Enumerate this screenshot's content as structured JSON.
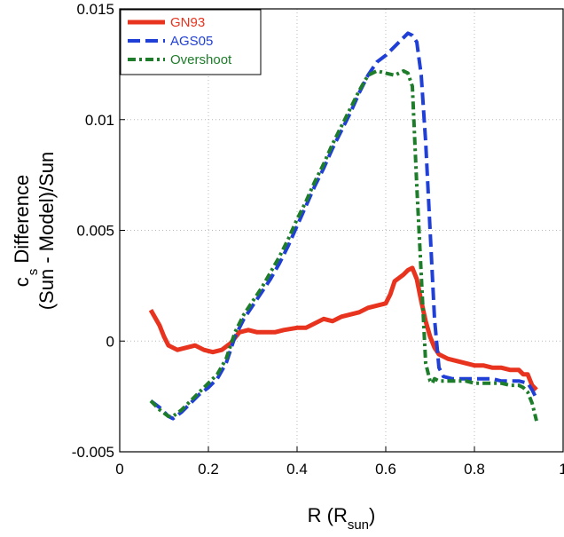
{
  "chart_data": {
    "type": "line",
    "title": "",
    "xlabel": {
      "main": "R (R",
      "sub": "sun",
      "close": ")"
    },
    "ylabel": {
      "c": "c",
      "s": "s",
      "line1_rest": " Difference",
      "line2": "(Sun - Model)/Sun"
    },
    "xlim": [
      0,
      1
    ],
    "ylim": [
      -0.005,
      0.015
    ],
    "x_ticks": [
      0,
      0.2,
      0.4,
      0.6,
      0.8,
      1
    ],
    "x_tick_labels": [
      "0",
      "0.2",
      "0.4",
      "0.6",
      "0.8",
      "1"
    ],
    "y_ticks": [
      -0.005,
      0,
      0.005,
      0.01,
      0.015
    ],
    "y_tick_labels": [
      "-0.005",
      "0",
      "0.005",
      "0.01",
      "0.015"
    ],
    "grid": true,
    "legend_position": "top-left",
    "series": [
      {
        "name": "GN93",
        "color": "#e8331e",
        "style": "solid",
        "x": [
          0.07,
          0.09,
          0.1,
          0.11,
          0.13,
          0.15,
          0.17,
          0.19,
          0.21,
          0.23,
          0.25,
          0.27,
          0.29,
          0.31,
          0.33,
          0.35,
          0.37,
          0.4,
          0.42,
          0.44,
          0.45,
          0.46,
          0.48,
          0.5,
          0.52,
          0.54,
          0.56,
          0.58,
          0.6,
          0.61,
          0.62,
          0.64,
          0.65,
          0.66,
          0.67,
          0.68,
          0.69,
          0.7,
          0.71,
          0.72,
          0.74,
          0.76,
          0.78,
          0.8,
          0.82,
          0.84,
          0.86,
          0.88,
          0.9,
          0.91,
          0.92,
          0.93,
          0.94
        ],
        "values": [
          0.0014,
          0.0007,
          0.0002,
          -0.0002,
          -0.0004,
          -0.0003,
          -0.0002,
          -0.0004,
          -0.0005,
          -0.0004,
          -0.0001,
          0.0004,
          0.0005,
          0.0004,
          0.0004,
          0.0004,
          0.0005,
          0.0006,
          0.0006,
          0.0008,
          0.0009,
          0.001,
          0.0009,
          0.0011,
          0.0012,
          0.0013,
          0.0015,
          0.0016,
          0.0017,
          0.0021,
          0.0027,
          0.003,
          0.0032,
          0.0033,
          0.0028,
          0.0018,
          0.0009,
          0.0002,
          -0.0003,
          -0.0006,
          -0.0008,
          -0.0009,
          -0.001,
          -0.0011,
          -0.0011,
          -0.0012,
          -0.0012,
          -0.0013,
          -0.0013,
          -0.0015,
          -0.0015,
          -0.002,
          -0.0022
        ]
      },
      {
        "name": "AGS05",
        "color": "#1f3fd6",
        "style": "dashed",
        "x": [
          0.07,
          0.09,
          0.11,
          0.12,
          0.14,
          0.16,
          0.18,
          0.2,
          0.22,
          0.24,
          0.26,
          0.28,
          0.3,
          0.32,
          0.34,
          0.36,
          0.38,
          0.4,
          0.42,
          0.44,
          0.46,
          0.48,
          0.5,
          0.52,
          0.54,
          0.56,
          0.58,
          0.6,
          0.62,
          0.64,
          0.65,
          0.66,
          0.67,
          0.68,
          0.69,
          0.7,
          0.71,
          0.72,
          0.73,
          0.75,
          0.78,
          0.8,
          0.82,
          0.84,
          0.86,
          0.88,
          0.9,
          0.92,
          0.93,
          0.94
        ],
        "values": [
          -0.0027,
          -0.003,
          -0.0034,
          -0.0035,
          -0.0032,
          -0.0028,
          -0.0024,
          -0.0021,
          -0.0017,
          -0.001,
          0.0002,
          0.001,
          0.0016,
          0.0022,
          0.0028,
          0.0035,
          0.0043,
          0.0052,
          0.0061,
          0.007,
          0.0078,
          0.0087,
          0.0095,
          0.0103,
          0.0112,
          0.012,
          0.0126,
          0.0129,
          0.0133,
          0.0137,
          0.0139,
          0.0138,
          0.0135,
          0.012,
          0.009,
          0.005,
          0.001,
          -0.0012,
          -0.0016,
          -0.0017,
          -0.0017,
          -0.0017,
          -0.0017,
          -0.0017,
          -0.0018,
          -0.0018,
          -0.0018,
          -0.0019,
          -0.0022,
          -0.0026
        ]
      },
      {
        "name": "Overshoot",
        "color": "#1e7d2a",
        "style": "dashdot",
        "x": [
          0.07,
          0.09,
          0.11,
          0.12,
          0.14,
          0.16,
          0.18,
          0.2,
          0.22,
          0.24,
          0.26,
          0.28,
          0.3,
          0.32,
          0.34,
          0.36,
          0.38,
          0.4,
          0.42,
          0.44,
          0.46,
          0.48,
          0.5,
          0.52,
          0.54,
          0.56,
          0.58,
          0.6,
          0.62,
          0.63,
          0.64,
          0.65,
          0.66,
          0.67,
          0.68,
          0.69,
          0.7,
          0.705,
          0.71,
          0.72,
          0.75,
          0.78,
          0.8,
          0.82,
          0.84,
          0.86,
          0.88,
          0.9,
          0.91,
          0.92,
          0.93,
          0.94
        ],
        "values": [
          -0.0027,
          -0.0031,
          -0.0034,
          -0.0034,
          -0.0031,
          -0.0027,
          -0.0023,
          -0.0019,
          -0.0015,
          -0.0008,
          0.0004,
          0.0012,
          0.0018,
          0.0024,
          0.0031,
          0.0038,
          0.0046,
          0.0055,
          0.0063,
          0.0072,
          0.008,
          0.0089,
          0.0097,
          0.0105,
          0.0113,
          0.012,
          0.0122,
          0.0121,
          0.012,
          0.0121,
          0.0122,
          0.0121,
          0.0115,
          0.007,
          0.003,
          -0.001,
          -0.0018,
          -0.0019,
          -0.0017,
          -0.0018,
          -0.0018,
          -0.0018,
          -0.0019,
          -0.0019,
          -0.0019,
          -0.0019,
          -0.002,
          -0.002,
          -0.0021,
          -0.0023,
          -0.0028,
          -0.0036
        ]
      }
    ]
  }
}
